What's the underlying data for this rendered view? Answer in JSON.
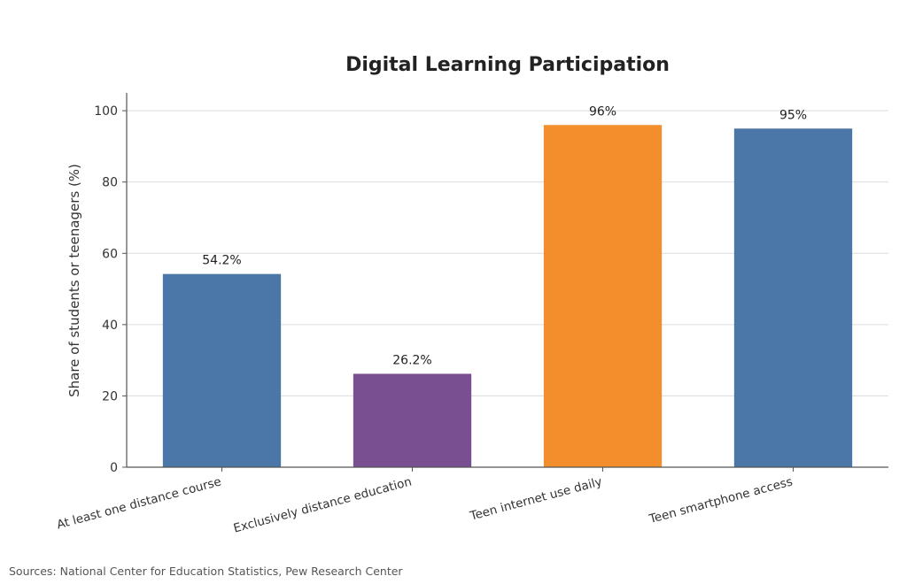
{
  "chart_data": {
    "type": "bar",
    "title": "Digital Learning Participation",
    "xlabel": "",
    "ylabel": "Share of students or teenagers (%)",
    "categories": [
      "At least one distance course",
      "Exclusively distance education",
      "Teen internet use daily",
      "Teen smartphone access"
    ],
    "values": [
      54.2,
      26.2,
      96,
      95
    ],
    "data_labels": [
      "54.2%",
      "26.2%",
      "96%",
      "95%"
    ],
    "colors": [
      "#4a76a8",
      "#7a4f91",
      "#f28e2b",
      "#4a76a8"
    ],
    "ylim": [
      0,
      105
    ],
    "yticks": [
      0,
      20,
      40,
      60,
      80,
      100
    ],
    "grid": true,
    "legend": "none"
  },
  "source_note": "Sources: National Center for Education Statistics, Pew Research Center"
}
